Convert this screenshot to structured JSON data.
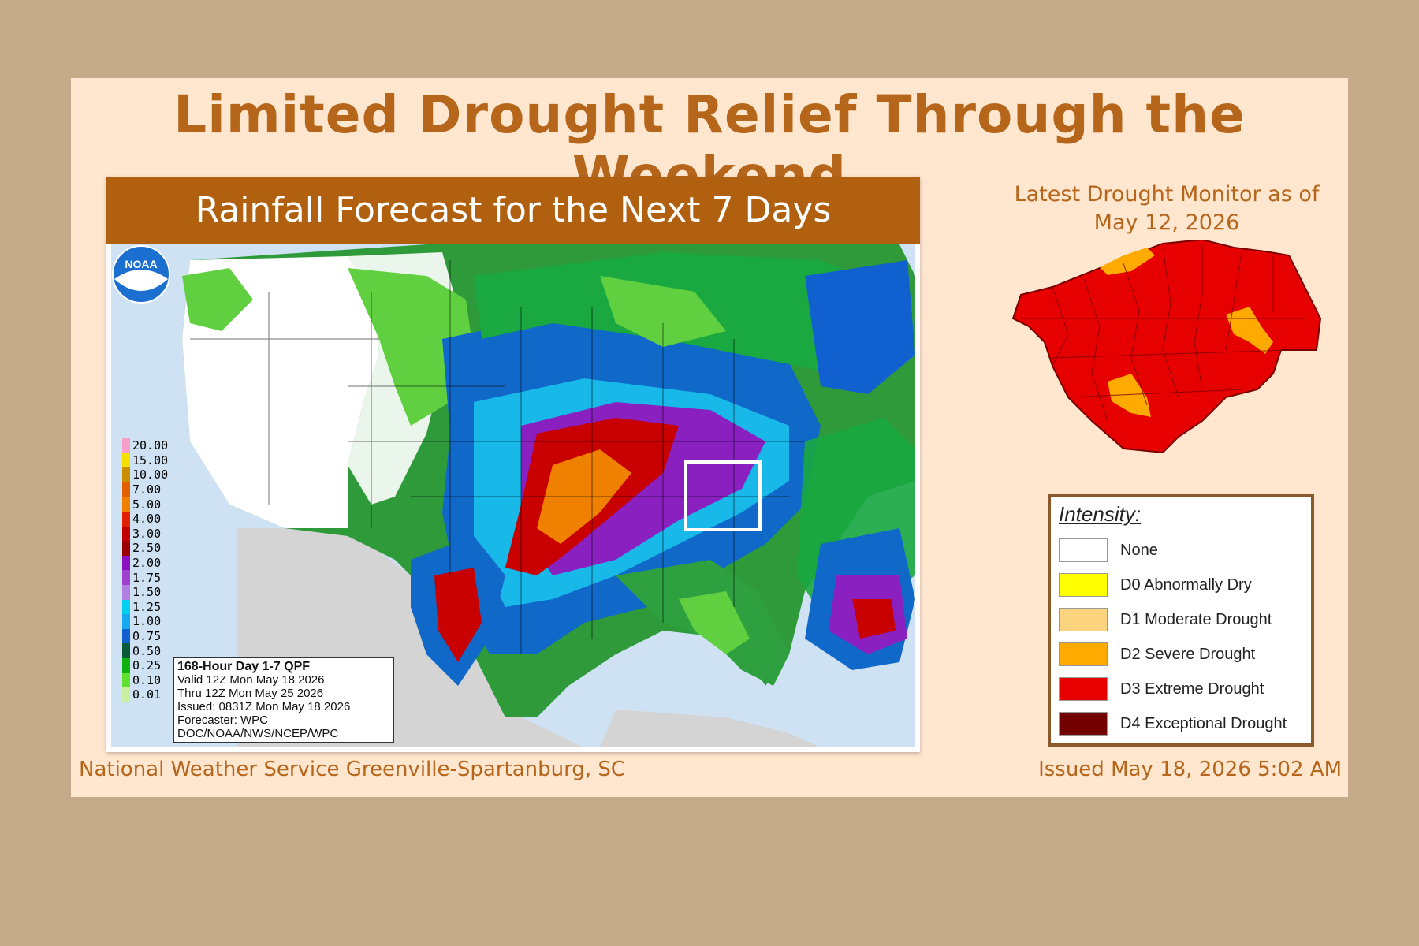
{
  "title": "Limited Drought Relief Through the Weekend",
  "rainfall": {
    "banner": "Rainfall Forecast for the Next 7 Days",
    "scale": [
      {
        "label": "20.00",
        "color": "#f4a0c8"
      },
      {
        "label": "15.00",
        "color": "#f6e000"
      },
      {
        "label": "10.00",
        "color": "#c89000"
      },
      {
        "label": "7.00",
        "color": "#e06000"
      },
      {
        "label": "5.00",
        "color": "#f08000"
      },
      {
        "label": "4.00",
        "color": "#e02000"
      },
      {
        "label": "3.00",
        "color": "#c00000"
      },
      {
        "label": "2.50",
        "color": "#9a0000"
      },
      {
        "label": "2.00",
        "color": "#8a10c0"
      },
      {
        "label": "1.75",
        "color": "#a040d0"
      },
      {
        "label": "1.50",
        "color": "#b080e0"
      },
      {
        "label": "1.25",
        "color": "#00d0f0"
      },
      {
        "label": "1.00",
        "color": "#18a8f0"
      },
      {
        "label": "0.75",
        "color": "#1060d0"
      },
      {
        "label": "0.50",
        "color": "#0a5a3a"
      },
      {
        "label": "0.25",
        "color": "#10b010"
      },
      {
        "label": "0.10",
        "color": "#60e030"
      },
      {
        "label": "0.01",
        "color": "#c8f0a0"
      }
    ],
    "info": {
      "title": "168-Hour Day 1-7 QPF",
      "valid": "Valid 12Z Mon May 18 2026",
      "thru": "Thru 12Z Mon May 25 2026",
      "issued": "Issued: 0831Z Mon May 18 2026",
      "forecaster": "Forecaster: WPC",
      "org": "DOC/NOAA/NWS/NCEP/WPC"
    },
    "logo_text": "NOAA"
  },
  "drought": {
    "title": "Latest Drought Monitor as of May 12, 2026",
    "legend_title": "Intensity:",
    "legend": [
      {
        "label": "None",
        "color": "#ffffff"
      },
      {
        "label": "D0 Abnormally Dry",
        "color": "#ffff00"
      },
      {
        "label": "D1 Moderate Drought",
        "color": "#fcd37f"
      },
      {
        "label": "D2 Severe Drought",
        "color": "#ffaa00"
      },
      {
        "label": "D3 Extreme Drought",
        "color": "#e60000"
      },
      {
        "label": "D4 Exceptional Drought",
        "color": "#730000"
      }
    ]
  },
  "footer": {
    "left": "National Weather Service Greenville-Spartanburg, SC",
    "right": "Issued May 18, 2026 5:02 AM"
  }
}
